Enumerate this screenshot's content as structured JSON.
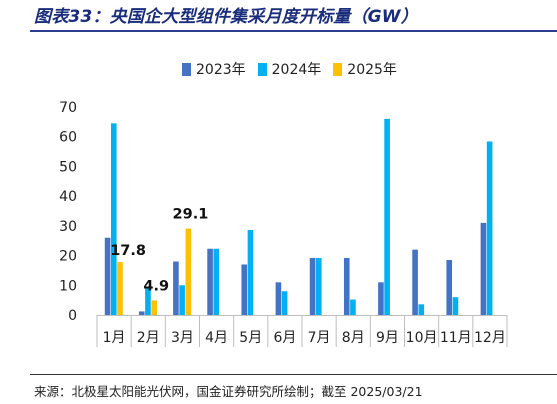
{
  "header": {
    "title": "图表33：央国企大型组件集采月度开标量（GW）"
  },
  "footer": {
    "source": "来源：北极星太阳能光伏网，国金证券研究所绘制；截至 2025/03/21"
  },
  "chart_data": {
    "type": "bar",
    "title": "",
    "xlabel": "",
    "ylabel": "",
    "ylim": [
      0,
      70
    ],
    "yticks": [
      0,
      10,
      20,
      30,
      40,
      50,
      60,
      70
    ],
    "categories": [
      "1月",
      "2月",
      "3月",
      "4月",
      "5月",
      "6月",
      "7月",
      "8月",
      "9月",
      "10月",
      "11月",
      "12月"
    ],
    "series": [
      {
        "name": "2023年",
        "color": "#4472c4",
        "values": [
          26,
          1.2,
          18,
          22.3,
          17,
          11,
          19.2,
          19.2,
          11,
          22,
          18.5,
          31
        ]
      },
      {
        "name": "2024年",
        "color": "#00b0f0",
        "values": [
          64.5,
          9.2,
          10,
          22.3,
          28.6,
          8,
          19.2,
          5.2,
          66,
          3.6,
          6,
          58.4
        ]
      },
      {
        "name": "2025年",
        "color": "#ffc000",
        "values": [
          17.8,
          4.9,
          29.1,
          null,
          null,
          null,
          null,
          null,
          null,
          null,
          null,
          null
        ]
      }
    ],
    "data_labels": [
      {
        "series": 2,
        "index": 0,
        "text": "17.8"
      },
      {
        "series": 2,
        "index": 1,
        "text": "4.9"
      },
      {
        "series": 2,
        "index": 2,
        "text": "29.1"
      }
    ],
    "legend_position": "top",
    "grid": false
  }
}
